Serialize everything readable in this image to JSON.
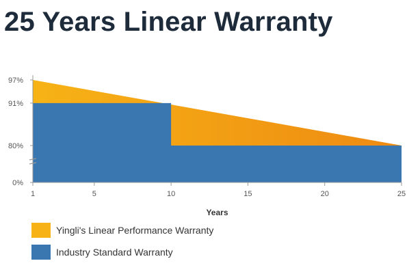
{
  "chart_data": {
    "type": "area",
    "title": "25 Years Linear Warranty",
    "xlabel": "Years",
    "ylabel": "",
    "x_ticks": [
      1,
      5,
      10,
      15,
      20,
      25
    ],
    "y_ticks": [
      {
        "value": 0,
        "label": "0%"
      },
      {
        "value": 80,
        "label": "80%"
      },
      {
        "value": 91,
        "label": "91%"
      },
      {
        "value": 97,
        "label": "97%"
      }
    ],
    "xlim": [
      1,
      25
    ],
    "ylim": [
      0,
      97
    ],
    "y_axis_break": "between 0% and 80%",
    "series": [
      {
        "name": "Yingli's Linear Performance Warranty",
        "color_start": "#f7b316",
        "color_end": "#ee8a12",
        "points": [
          [
            1,
            97
          ],
          [
            25,
            80
          ]
        ]
      },
      {
        "name": "Industry Standard Warranty",
        "color": "#3a76b0",
        "points": [
          [
            1,
            91
          ],
          [
            10,
            91
          ],
          [
            10,
            80
          ],
          [
            25,
            80
          ]
        ]
      }
    ],
    "legend_position": "bottom-left",
    "grid": false
  }
}
